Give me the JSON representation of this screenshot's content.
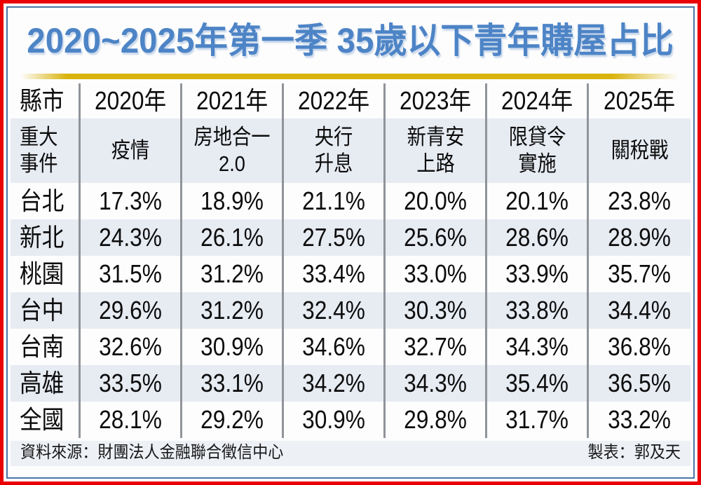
{
  "title": "2020~2025年第一季 35歲以下青年購屋占比",
  "colors": {
    "border_red": "#EA0000",
    "frame_blue": "#4A74A4",
    "title_blue": "#4D84C6",
    "bar_yellow": "#D9B30D",
    "stripe": "#E7EBF2",
    "footer_bg": "#EDF0F4",
    "divider": "#90949A"
  },
  "table": {
    "columns": [
      "縣市",
      "2020年",
      "2021年",
      "2022年",
      "2023年",
      "2024年",
      "2025年"
    ],
    "event_label_lines": [
      "重大",
      "事件"
    ],
    "events": [
      [
        "疫情"
      ],
      [
        "房地合一",
        "2.0"
      ],
      [
        "央行",
        "升息"
      ],
      [
        "新青安",
        "上路"
      ],
      [
        "限貸令",
        "實施"
      ],
      [
        "關稅戰"
      ]
    ],
    "rows": [
      {
        "region": "台北",
        "values": [
          "17.3%",
          "18.9%",
          "21.1%",
          "20.0%",
          "20.1%",
          "23.8%"
        ]
      },
      {
        "region": "新北",
        "values": [
          "24.3%",
          "26.1%",
          "27.5%",
          "25.6%",
          "28.6%",
          "28.9%"
        ]
      },
      {
        "region": "桃園",
        "values": [
          "31.5%",
          "31.2%",
          "33.4%",
          "33.0%",
          "33.9%",
          "35.7%"
        ]
      },
      {
        "region": "台中",
        "values": [
          "29.6%",
          "31.2%",
          "32.4%",
          "30.3%",
          "33.8%",
          "34.4%"
        ]
      },
      {
        "region": "台南",
        "values": [
          "32.6%",
          "30.9%",
          "34.6%",
          "32.7%",
          "34.3%",
          "36.8%"
        ]
      },
      {
        "region": "高雄",
        "values": [
          "33.5%",
          "33.1%",
          "34.2%",
          "34.3%",
          "35.4%",
          "36.5%"
        ]
      },
      {
        "region": "全國",
        "values": [
          "28.1%",
          "29.2%",
          "30.9%",
          "29.8%",
          "31.7%",
          "33.2%"
        ]
      }
    ]
  },
  "footer": {
    "source": "資料來源：財團法人金融聯合徵信中心",
    "credit": "製表：郭及天"
  },
  "chart_data": {
    "type": "table",
    "title": "2020~2025年第一季 35歲以下青年購屋占比",
    "unit": "%",
    "categories": [
      "2020年",
      "2021年",
      "2022年",
      "2023年",
      "2024年",
      "2025年"
    ],
    "events_by_year": [
      "疫情",
      "房地合一2.0",
      "央行升息",
      "新青安上路",
      "限貸令實施",
      "關稅戰"
    ],
    "series": [
      {
        "name": "台北",
        "values": [
          17.3,
          18.9,
          21.1,
          20.0,
          20.1,
          23.8
        ]
      },
      {
        "name": "新北",
        "values": [
          24.3,
          26.1,
          27.5,
          25.6,
          28.6,
          28.9
        ]
      },
      {
        "name": "桃園",
        "values": [
          31.5,
          31.2,
          33.4,
          33.0,
          33.9,
          35.7
        ]
      },
      {
        "name": "台中",
        "values": [
          29.6,
          31.2,
          32.4,
          30.3,
          33.8,
          34.4
        ]
      },
      {
        "name": "台南",
        "values": [
          32.6,
          30.9,
          34.6,
          32.7,
          34.3,
          36.8
        ]
      },
      {
        "name": "高雄",
        "values": [
          33.5,
          33.1,
          34.2,
          34.3,
          35.4,
          36.5
        ]
      },
      {
        "name": "全國",
        "values": [
          28.1,
          29.2,
          30.9,
          29.8,
          31.7,
          33.2
        ]
      }
    ]
  }
}
